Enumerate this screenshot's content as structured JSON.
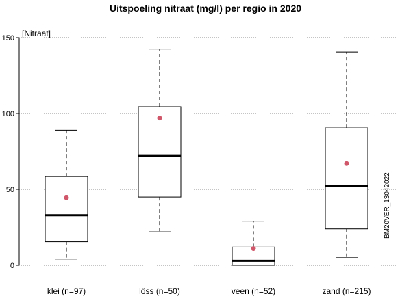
{
  "chart_data": {
    "type": "box",
    "title": "Uitspoeling nitraat (mg/l) per regio in 2020",
    "ylabel": "[Nitraat]",
    "ylim": [
      0,
      150
    ],
    "yticks": [
      0,
      50,
      100,
      150
    ],
    "grid": "horizontal dotted",
    "categories": [
      "klei (n=97)",
      "löss (n=50)",
      "veen (n=52)",
      "zand (n=215)"
    ],
    "boxes": [
      {
        "whisker_low": 3.5,
        "q1": 15.5,
        "median": 33,
        "q3": 58.5,
        "whisker_high": 89,
        "mean": 44.5
      },
      {
        "whisker_low": 22,
        "q1": 45,
        "median": 72,
        "q3": 104.5,
        "whisker_high": 142.5,
        "mean": 97
      },
      {
        "whisker_low": 0,
        "q1": 0,
        "median": 3,
        "q3": 12,
        "whisker_high": 29,
        "mean": 11
      },
      {
        "whisker_low": 5,
        "q1": 24,
        "median": 52,
        "q3": 90.5,
        "whisker_high": 140.5,
        "mean": 67
      }
    ],
    "mean_color": "#d0566a",
    "watermark": "BM20VER_13042022"
  }
}
